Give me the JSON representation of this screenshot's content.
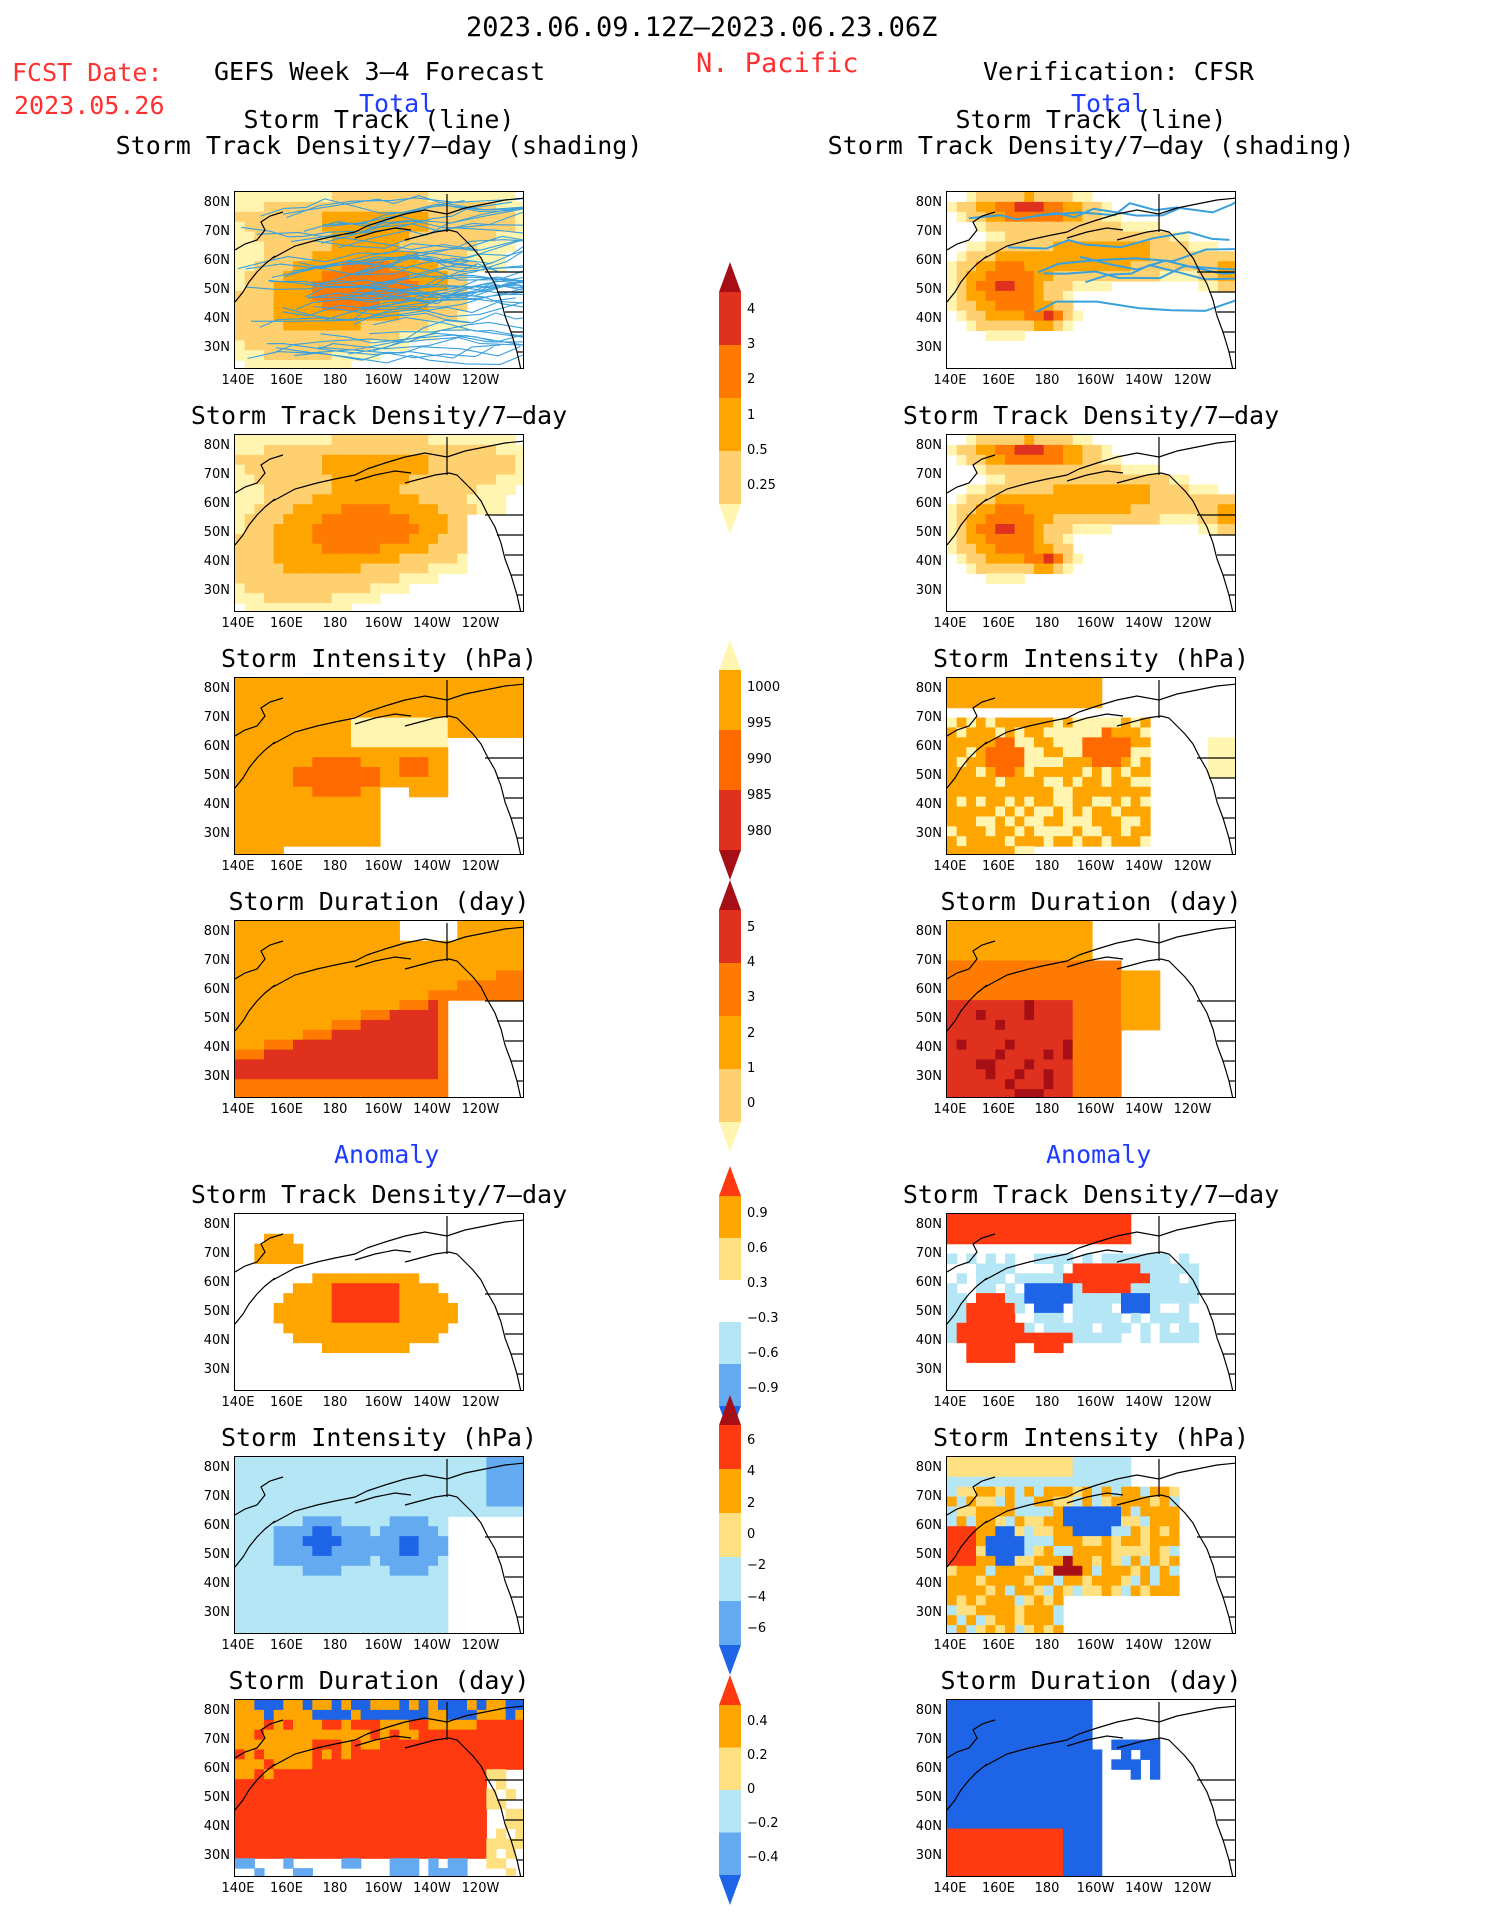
{
  "header": {
    "date_range": "2023.06.09.12Z–2023.06.23.06Z",
    "region": "N. Pacific",
    "fcst_label": "FCST Date:",
    "fcst_date": "2023.05.26",
    "left_title": "GEFS Week 3–4 Forecast",
    "right_title": "Verification: CFSR",
    "total_left": "Total",
    "total_right": "Total",
    "anomaly_left": "Anomaly",
    "anomaly_right": "Anomaly"
  },
  "panel_titles": {
    "p1_line1": "Storm Track (line)",
    "p1_line2": "Storm Track Density/7–day (shading)",
    "density": "Storm Track Density/7–day",
    "intensity": "Storm Intensity (hPa)",
    "duration": "Storm Duration (day)"
  },
  "axes": {
    "lat_labels": [
      "80N",
      "70N",
      "60N",
      "50N",
      "40N",
      "30N"
    ],
    "lon_labels": [
      "140E",
      "160E",
      "180",
      "160W",
      "140W",
      "120W"
    ]
  },
  "colorbars": {
    "density_total": {
      "labels": [
        "4",
        "3",
        "2",
        "1",
        "0.5",
        "0.25"
      ],
      "colors": [
        "#a50f15",
        "#e0301e",
        "#ff7a00",
        "#ffa500",
        "#ffd070",
        "#fff5b0"
      ]
    },
    "intensity_total": {
      "labels": [
        "1000",
        "995",
        "990",
        "985",
        "980"
      ],
      "colors": [
        "#fff5b0",
        "#ffa500",
        "#ff6a00",
        "#e0301e",
        "#a50f15"
      ]
    },
    "duration_total": {
      "labels": [
        "5",
        "4",
        "3",
        "2",
        "1",
        "0"
      ],
      "colors": [
        "#a50f15",
        "#e0301e",
        "#ff7a00",
        "#ffa500",
        "#ffd070",
        "#fff5b0"
      ]
    },
    "density_anom": {
      "labels": [
        "0.9",
        "0.6",
        "0.3",
        "−0.3",
        "−0.6",
        "−0.9"
      ],
      "colors": [
        "#ff3a10",
        "#ffa500",
        "#ffe080",
        "#ffffff",
        "#b4e6f5",
        "#64aaf0",
        "#1e64e6"
      ]
    },
    "intensity_anom": {
      "labels": [
        "6",
        "4",
        "2",
        "0",
        "−2",
        "−4",
        "−6"
      ],
      "colors": [
        "#a50f15",
        "#ff3a10",
        "#ffa500",
        "#ffe080",
        "#b4e6f5",
        "#64aaf0",
        "#1e64e6"
      ]
    },
    "duration_anom": {
      "labels": [
        "0.4",
        "0.2",
        "0",
        "−0.2",
        "−0.4"
      ],
      "colors": [
        "#ff3a10",
        "#ffa500",
        "#ffe080",
        "#b4e6f5",
        "#64aaf0",
        "#1e64e6"
      ]
    }
  },
  "palette": {
    "track_line": "#3aa0dc",
    "coast": "#000000",
    "title_red": "#ff3030",
    "title_blue": "#1e3cff"
  }
}
